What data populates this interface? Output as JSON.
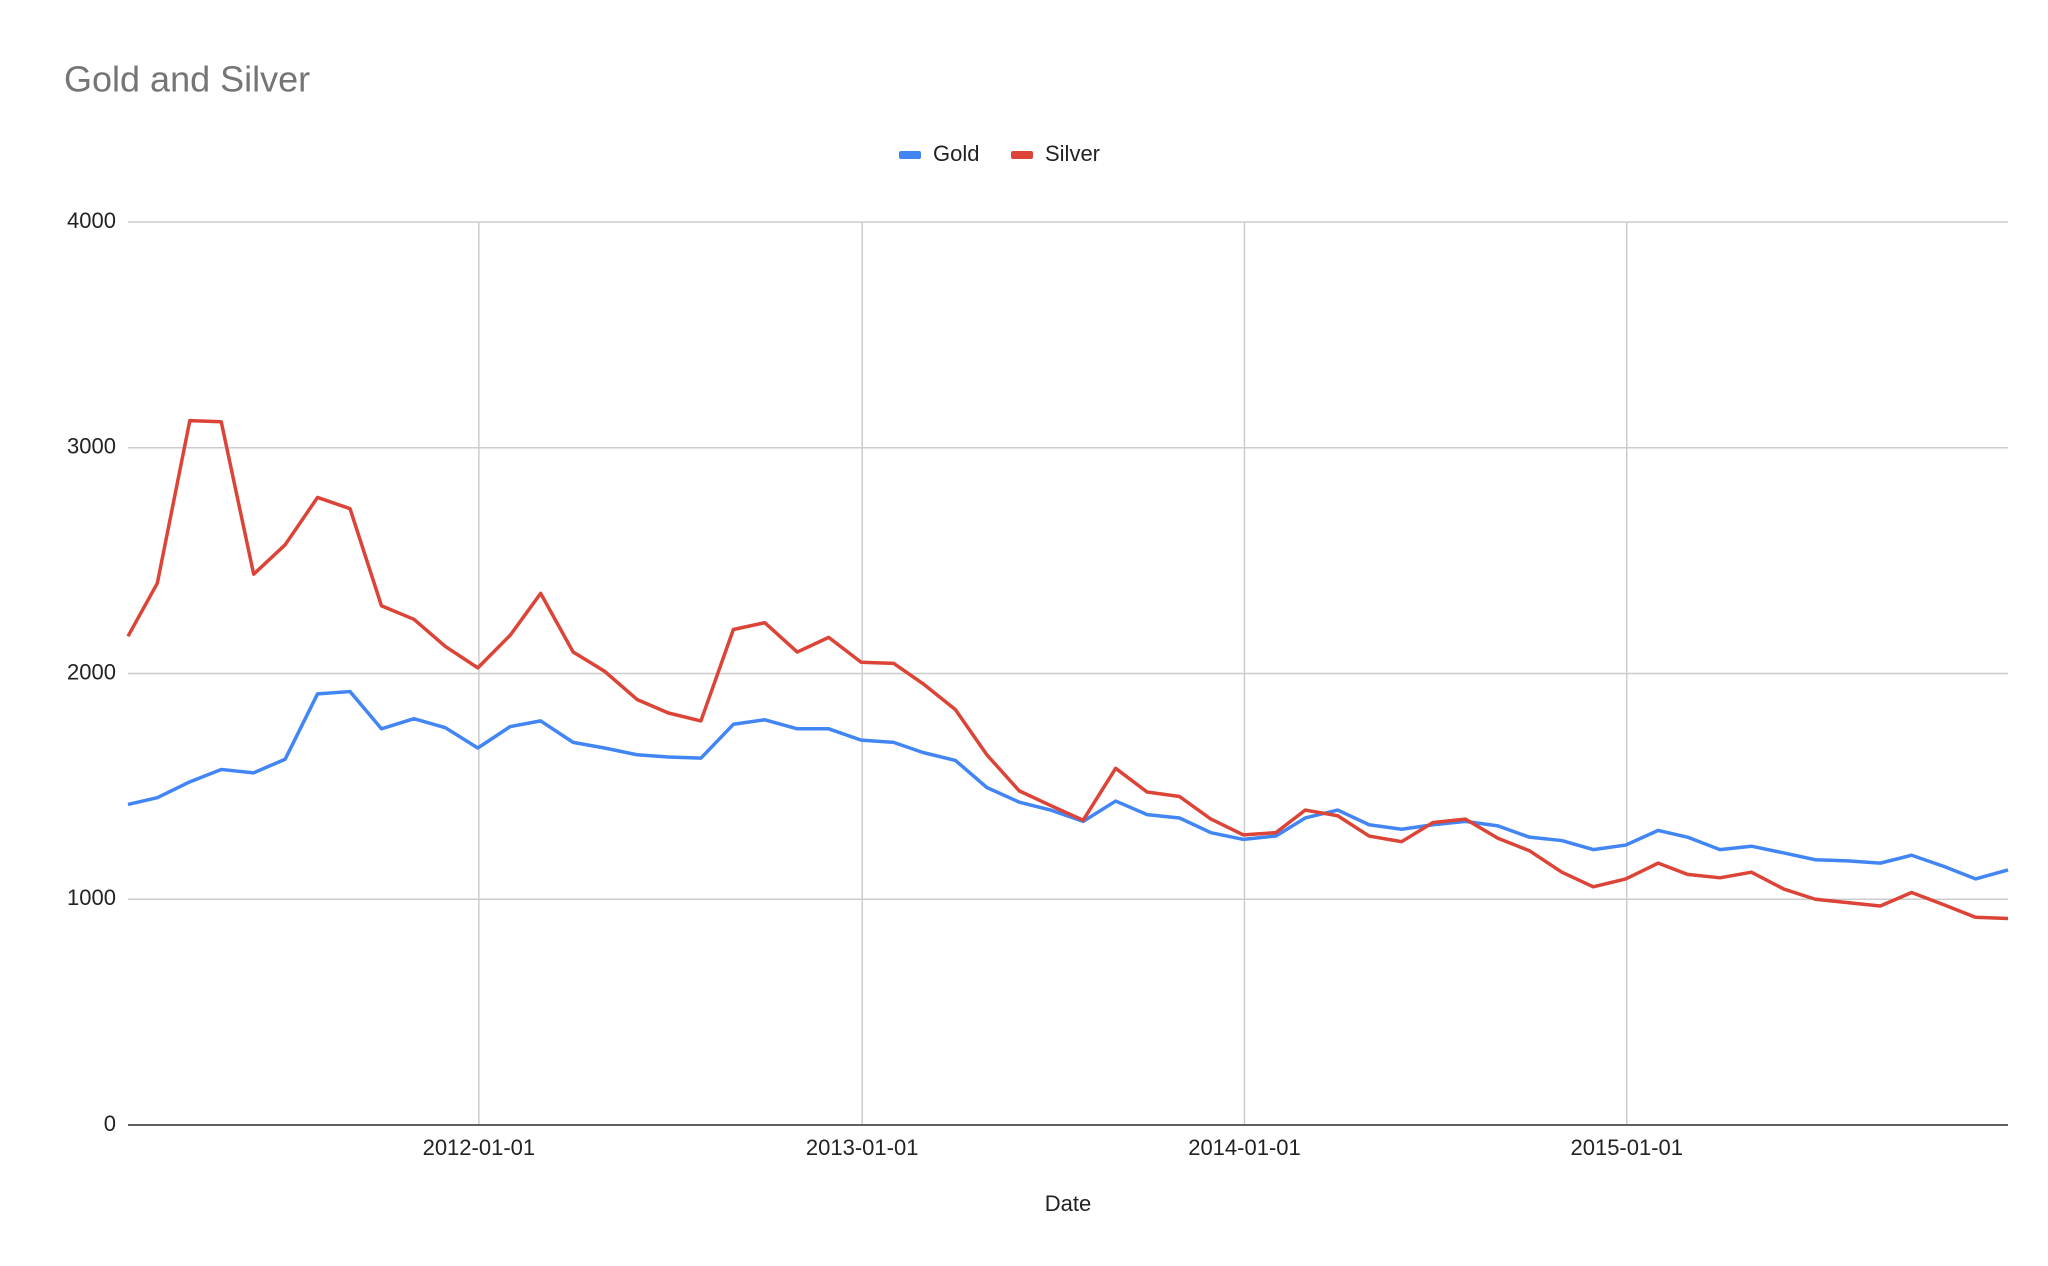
{
  "chart_data": {
    "type": "line",
    "title": "Gold and Silver",
    "x_label": "Date",
    "x": [
      "2011-01-31",
      "2011-02-28",
      "2011-03-31",
      "2011-04-30",
      "2011-05-31",
      "2011-06-30",
      "2011-07-31",
      "2011-08-31",
      "2011-09-30",
      "2011-10-31",
      "2011-11-30",
      "2011-12-31",
      "2012-01-31",
      "2012-02-29",
      "2012-03-31",
      "2012-04-30",
      "2012-05-31",
      "2012-06-30",
      "2012-07-31",
      "2012-08-31",
      "2012-09-30",
      "2012-10-31",
      "2012-11-30",
      "2012-12-31",
      "2013-01-31",
      "2013-02-28",
      "2013-03-31",
      "2013-04-30",
      "2013-05-31",
      "2013-06-30",
      "2013-07-31",
      "2013-08-31",
      "2013-09-30",
      "2013-10-31",
      "2013-11-30",
      "2013-12-31",
      "2014-01-31",
      "2014-02-28",
      "2014-03-31",
      "2014-04-30",
      "2014-05-31",
      "2014-06-30",
      "2014-07-31",
      "2014-08-31",
      "2014-09-30",
      "2014-10-31",
      "2014-11-30",
      "2014-12-31",
      "2015-01-31",
      "2015-02-28",
      "2015-03-31",
      "2015-04-30",
      "2015-05-31",
      "2015-06-30",
      "2015-07-31",
      "2015-08-31",
      "2015-09-30",
      "2015-10-31",
      "2015-11-30",
      "2015-12-31"
    ],
    "series": [
      {
        "name": "Gold",
        "color": "#4285f4",
        "values": [
          1420,
          1450,
          1520,
          1575,
          1560,
          1620,
          1910,
          1920,
          1755,
          1800,
          1760,
          1670,
          1765,
          1790,
          1695,
          1670,
          1640,
          1630,
          1625,
          1775,
          1795,
          1755,
          1755,
          1705,
          1695,
          1650,
          1615,
          1495,
          1430,
          1395,
          1345,
          1435,
          1375,
          1360,
          1295,
          1265,
          1280,
          1360,
          1395,
          1330,
          1310,
          1330,
          1345,
          1325,
          1275,
          1260,
          1220,
          1240,
          1305,
          1275,
          1220,
          1235,
          1205,
          1175,
          1170,
          1160,
          1195,
          1145,
          1090,
          1130
        ]
      },
      {
        "name": "Silver",
        "color": "#db4437",
        "values": [
          2165,
          2400,
          3120,
          3115,
          2440,
          2570,
          2780,
          2730,
          2300,
          2240,
          2120,
          2025,
          2170,
          2355,
          2095,
          2010,
          1885,
          1825,
          1790,
          2195,
          2225,
          2095,
          2160,
          2050,
          2045,
          1955,
          1840,
          1640,
          1480,
          1415,
          1350,
          1580,
          1475,
          1455,
          1355,
          1285,
          1295,
          1395,
          1370,
          1280,
          1255,
          1340,
          1355,
          1270,
          1215,
          1120,
          1055,
          1090,
          1160,
          1110,
          1095,
          1120,
          1045,
          1000,
          985,
          970,
          1030,
          975,
          920,
          915
        ]
      }
    ],
    "xlim": [
      "2011-01-31",
      "2015-12-31"
    ],
    "xticks": [
      "2012-01-01",
      "2013-01-01",
      "2014-01-01",
      "2015-01-01"
    ],
    "ylim": [
      0,
      4000
    ],
    "yticks": [
      0,
      1000,
      2000,
      3000,
      4000
    ],
    "grid": true,
    "legend": "top"
  }
}
